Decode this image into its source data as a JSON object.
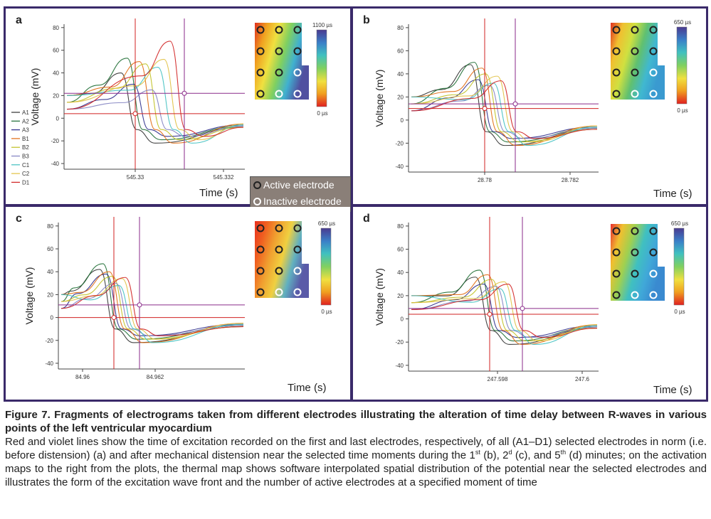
{
  "figure": {
    "caption_title": "Figure 7. Fragments of electrograms taken from different electrodes illustrating the alteration of time delay between R-waves in various points of the left ventricular myocardium",
    "caption_body": {
      "part1": "Red and violet lines show the time of excitation recorded on the first and last electrodes, respectively, of all (A1–D1) selected electrodes in norm (i.e. before distension) (a) and after mechanical distension near the selected time moments during the 1",
      "sup1": "st",
      "part2": " (b), 2",
      "sup2": "d",
      "part3": " (c), and 5",
      "sup3": "th",
      "part4": " (d) minutes; on the activation maps to the right from the plots, the thermal map shows software interpolated spatial distribution of the potential near the selected electrodes and illustrates the form of the excitation wave front and the number of active electrodes at a specified moment of time"
    },
    "electrode_legend": {
      "active": "Active electrode",
      "inactive": "Inactive electrode"
    },
    "series_legend": [
      "A1",
      "A2",
      "A3",
      "B1",
      "B2",
      "B3",
      "C1",
      "C2",
      "D1"
    ]
  },
  "colors": {
    "frame": "#3a2a6a",
    "red_marker": "#d02020",
    "violet_marker": "#8a2a8a",
    "series": [
      "#303030",
      "#1a6a30",
      "#2a2a8a",
      "#e06a10",
      "#c0c020",
      "#8080c0",
      "#40c0c0",
      "#e0c040",
      "#d02020"
    ]
  },
  "chart_data": [
    {
      "panel": "a",
      "type": "line",
      "xlabel": "Time (s)",
      "ylabel": "Voltage (mV)",
      "x_ticks": [
        "545.33",
        "545.332"
      ],
      "y_ticks": [
        80,
        60,
        40,
        20,
        0,
        -20,
        -40
      ],
      "ylim": [
        -45,
        83
      ],
      "colorbar": {
        "max_label": "1100 µs",
        "min_label": "0 µs"
      },
      "red_line": {
        "y": 4
      },
      "violet_line": {
        "y": 22
      },
      "series_peaks": [
        {
          "name": "A1",
          "peak": 40
        },
        {
          "name": "A2",
          "peak": 53
        },
        {
          "name": "A3",
          "peak": 30
        },
        {
          "name": "B1",
          "peak": 50
        },
        {
          "name": "B2",
          "peak": 48
        },
        {
          "name": "B3",
          "peak": 25
        },
        {
          "name": "C1",
          "peak": 45
        },
        {
          "name": "C2",
          "peak": 52
        },
        {
          "name": "D1",
          "peak": 68
        }
      ]
    },
    {
      "panel": "b",
      "type": "line",
      "xlabel": "Time (s)",
      "ylabel": "Voltage (mV)",
      "x_ticks": [
        "28.78",
        "28.782"
      ],
      "y_ticks": [
        80,
        60,
        40,
        20,
        0,
        -20,
        -40
      ],
      "ylim": [
        -45,
        83
      ],
      "colorbar": {
        "max_label": "650 µs",
        "min_label": "0 µs"
      },
      "red_line": {
        "y": 10
      },
      "violet_line": {
        "y": 14
      },
      "series_peaks": [
        {
          "name": "A1",
          "peak": 48
        },
        {
          "name": "A2",
          "peak": 50
        },
        {
          "name": "A3",
          "peak": 35
        },
        {
          "name": "B1",
          "peak": 45
        },
        {
          "name": "B2",
          "peak": 40
        },
        {
          "name": "B3",
          "peak": 30
        },
        {
          "name": "C1",
          "peak": 32
        },
        {
          "name": "C2",
          "peak": 38
        },
        {
          "name": "D1",
          "peak": 34
        }
      ]
    },
    {
      "panel": "c",
      "type": "line",
      "xlabel": "Time (s)",
      "ylabel": "Voltage (mV)",
      "x_ticks": [
        "84.96",
        "84.962"
      ],
      "y_ticks": [
        80,
        60,
        40,
        20,
        0,
        -20,
        -40
      ],
      "ylim": [
        -45,
        83
      ],
      "colorbar": {
        "max_label": "650 µs",
        "min_label": "0 µs"
      },
      "red_line": {
        "y": 0
      },
      "violet_line": {
        "y": 11
      },
      "series_peaks": [
        {
          "name": "A1",
          "peak": 42
        },
        {
          "name": "A2",
          "peak": 47
        },
        {
          "name": "A3",
          "peak": 38
        },
        {
          "name": "B1",
          "peak": 40
        },
        {
          "name": "B2",
          "peak": 36
        },
        {
          "name": "B3",
          "peak": 30
        },
        {
          "name": "C1",
          "peak": 28
        },
        {
          "name": "C2",
          "peak": 34
        },
        {
          "name": "D1",
          "peak": 35
        }
      ]
    },
    {
      "panel": "d",
      "type": "line",
      "xlabel": "Time (s)",
      "ylabel": "Voltage (mV)",
      "x_ticks": [
        "247.598",
        "247.6"
      ],
      "y_ticks": [
        80,
        60,
        40,
        20,
        0,
        -20,
        -40
      ],
      "ylim": [
        -45,
        83
      ],
      "colorbar": {
        "max_label": "650 µs",
        "min_label": "0 µs"
      },
      "red_line": {
        "y": 4
      },
      "violet_line": {
        "y": 9
      },
      "series_peaks": [
        {
          "name": "A1",
          "peak": 36
        },
        {
          "name": "A2",
          "peak": 42
        },
        {
          "name": "A3",
          "peak": 30
        },
        {
          "name": "B1",
          "peak": 38
        },
        {
          "name": "B2",
          "peak": 34
        },
        {
          "name": "B3",
          "peak": 28
        },
        {
          "name": "C1",
          "peak": 26
        },
        {
          "name": "C2",
          "peak": 32
        },
        {
          "name": "D1",
          "peak": 30
        }
      ]
    }
  ],
  "panels": [
    {
      "letter": "a",
      "time_label": "Time (s)"
    },
    {
      "letter": "b",
      "time_label": "Time (s)"
    },
    {
      "letter": "c",
      "time_label": "Time (s)"
    },
    {
      "letter": "d",
      "time_label": "Time (s)"
    }
  ]
}
